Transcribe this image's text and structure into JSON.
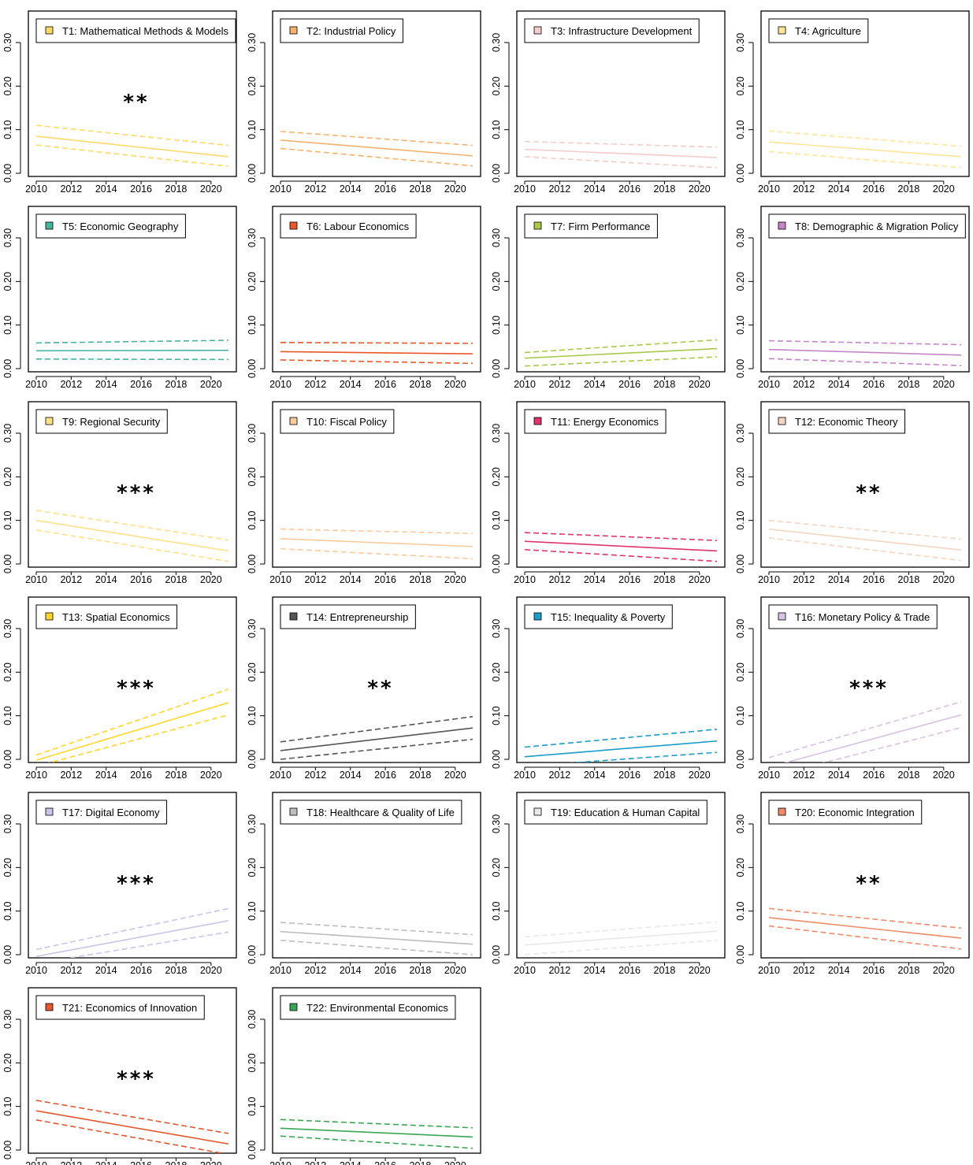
{
  "chart_data": {
    "type": "line",
    "layout": "small-multiples 4 columns x 6 rows",
    "x_ticks": [
      2010,
      2012,
      2014,
      2016,
      2018,
      2020
    ],
    "y_ticks": [
      "0.00",
      "0.10",
      "0.20",
      "0.30"
    ],
    "xlim": [
      2010,
      2021
    ],
    "ylim": [
      0,
      0.3
    ],
    "grid": false,
    "line_style": {
      "fit": "solid",
      "confidence_band": "dashed"
    },
    "panels": [
      {
        "label": "T1: Mathematical Methods & Models",
        "color": "#ffd966",
        "sig": "**",
        "fit": [
          0.085,
          0.038
        ],
        "ci_upper": [
          0.11,
          0.064
        ],
        "ci_lower": [
          0.065,
          0.016
        ]
      },
      {
        "label": "T2: Industrial Policy",
        "color": "#f6b26b",
        "sig": "",
        "fit": [
          0.076,
          0.04
        ],
        "ci_upper": [
          0.096,
          0.064
        ],
        "ci_lower": [
          0.057,
          0.017
        ]
      },
      {
        "label": "T3: Infrastructure Development",
        "color": "#f4cccc",
        "sig": "",
        "fit": [
          0.055,
          0.036
        ],
        "ci_upper": [
          0.073,
          0.06
        ],
        "ci_lower": [
          0.038,
          0.013
        ]
      },
      {
        "label": "T4: Agriculture",
        "color": "#ffe599",
        "sig": "",
        "fit": [
          0.072,
          0.038
        ],
        "ci_upper": [
          0.097,
          0.062
        ],
        "ci_lower": [
          0.05,
          0.013
        ]
      },
      {
        "label": "T5: Economic Geography",
        "color": "#45b39d",
        "sig": "",
        "fit": [
          0.041,
          0.042
        ],
        "ci_upper": [
          0.059,
          0.065
        ],
        "ci_lower": [
          0.022,
          0.021
        ]
      },
      {
        "label": "T6: Labour Economics",
        "color": "#e8572a",
        "sig": "",
        "fit": [
          0.039,
          0.034
        ],
        "ci_upper": [
          0.06,
          0.058
        ],
        "ci_lower": [
          0.02,
          0.012
        ]
      },
      {
        "label": "T7: Firm Performance",
        "color": "#a8c94a",
        "sig": "",
        "fit": [
          0.024,
          0.046
        ],
        "ci_upper": [
          0.037,
          0.066
        ],
        "ci_lower": [
          0.006,
          0.027
        ]
      },
      {
        "label": "T8: Demographic & Migration Policy",
        "color": "#c585c8",
        "sig": "",
        "fit": [
          0.044,
          0.031
        ],
        "ci_upper": [
          0.064,
          0.055
        ],
        "ci_lower": [
          0.023,
          0.007
        ]
      },
      {
        "label": "T9: Regional Security",
        "color": "#ffe08a",
        "sig": "***",
        "fit": [
          0.1,
          0.03
        ],
        "ci_upper": [
          0.123,
          0.055
        ],
        "ci_lower": [
          0.078,
          0.006
        ]
      },
      {
        "label": "T10: Fiscal Policy",
        "color": "#f9cb9c",
        "sig": "",
        "fit": [
          0.058,
          0.04
        ],
        "ci_upper": [
          0.08,
          0.07
        ],
        "ci_lower": [
          0.035,
          0.012
        ]
      },
      {
        "label": "T11: Energy Economics",
        "color": "#e0336f",
        "sig": "",
        "fit": [
          0.052,
          0.03
        ],
        "ci_upper": [
          0.072,
          0.054
        ],
        "ci_lower": [
          0.033,
          0.006
        ]
      },
      {
        "label": "T12: Economic Theory",
        "color": "#f5d5c0",
        "sig": "**",
        "fit": [
          0.08,
          0.032
        ],
        "ci_upper": [
          0.1,
          0.057
        ],
        "ci_lower": [
          0.06,
          0.008
        ]
      },
      {
        "label": "T13: Spatial Economics",
        "color": "#ffd52e",
        "sig": "***",
        "fit": [
          -0.002,
          0.13
        ],
        "ci_upper": [
          0.01,
          0.161
        ],
        "ci_lower": [
          -0.016,
          0.102
        ]
      },
      {
        "label": "T14: Entrepreneurship",
        "color": "#555555",
        "sig": "**",
        "fit": [
          0.02,
          0.072
        ],
        "ci_upper": [
          0.04,
          0.098
        ],
        "ci_lower": [
          0.0,
          0.046
        ]
      },
      {
        "label": "T15: Inequality & Poverty",
        "color": "#1b9cc9",
        "sig": "",
        "fit": [
          0.006,
          0.042
        ],
        "ci_upper": [
          0.028,
          0.069
        ],
        "ci_lower": [
          -0.016,
          0.016
        ]
      },
      {
        "label": "T16: Monetary Policy & Trade",
        "color": "#d9c2e3",
        "sig": "***",
        "fit": [
          -0.018,
          0.102
        ],
        "ci_upper": [
          0.004,
          0.132
        ],
        "ci_lower": [
          -0.04,
          0.073
        ]
      },
      {
        "label": "T17: Digital Economy",
        "color": "#c9c4ea",
        "sig": "***",
        "fit": [
          -0.004,
          0.078
        ],
        "ci_upper": [
          0.012,
          0.106
        ],
        "ci_lower": [
          -0.02,
          0.052
        ]
      },
      {
        "label": "T18: Healthcare & Quality of Life",
        "color": "#bdbdbd",
        "sig": "",
        "fit": [
          0.053,
          0.024
        ],
        "ci_upper": [
          0.074,
          0.046
        ],
        "ci_lower": [
          0.033,
          0.0
        ]
      },
      {
        "label": "T19: Education & Human Capital",
        "color": "#e8e8e8",
        "sig": "",
        "fit": [
          0.022,
          0.054
        ],
        "ci_upper": [
          0.041,
          0.075
        ],
        "ci_lower": [
          0.0,
          0.033
        ]
      },
      {
        "label": "T20: Economic Integration",
        "color": "#f08a68",
        "sig": "**",
        "fit": [
          0.085,
          0.038
        ],
        "ci_upper": [
          0.106,
          0.061
        ],
        "ci_lower": [
          0.066,
          0.013
        ]
      },
      {
        "label": "T21: Economics of Innovation",
        "color": "#e2572f",
        "sig": "***",
        "fit": [
          0.09,
          0.014
        ],
        "ci_upper": [
          0.114,
          0.038
        ],
        "ci_lower": [
          0.069,
          -0.01
        ]
      },
      {
        "label": "T22: Environmental Economics",
        "color": "#3aa655",
        "sig": "",
        "fit": [
          0.05,
          0.03
        ],
        "ci_upper": [
          0.07,
          0.051
        ],
        "ci_lower": [
          0.032,
          0.004
        ]
      }
    ]
  }
}
